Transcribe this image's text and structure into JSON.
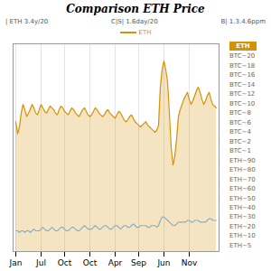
{
  "chart_data": {
    "type": "line",
    "title": "Comparison ETH Price",
    "categories": [
      "Jan",
      null,
      null,
      null,
      null,
      null,
      null,
      null,
      null,
      null,
      null,
      null,
      null,
      null,
      "Jul",
      null,
      null,
      null,
      null,
      null,
      null,
      null,
      null,
      null,
      null,
      null,
      null,
      "Oct",
      null,
      null,
      null,
      null,
      null,
      null,
      null,
      null,
      null,
      null,
      null,
      null,
      null,
      "Oct",
      null,
      null,
      null,
      null,
      null,
      null,
      null,
      null,
      null,
      null,
      null,
      null,
      null,
      "Apr",
      null,
      null,
      null,
      null,
      null,
      null,
      null,
      null,
      null,
      null,
      null,
      null,
      "Sep",
      null,
      null,
      null,
      null,
      null,
      null,
      null,
      null,
      null,
      null,
      null,
      null,
      null,
      "Jun",
      null,
      null,
      null,
      null,
      null,
      null,
      null,
      null,
      null,
      null,
      null,
      null,
      null,
      "Nov",
      null,
      null,
      null,
      null,
      null,
      null,
      null,
      null,
      null,
      null,
      null,
      null,
      null,
      null,
      null
    ],
    "series": [
      {
        "name": "ETH",
        "type": "area",
        "color": "#d4920a",
        "values": [
          75,
          68,
          72,
          80,
          85,
          82,
          78,
          80,
          82,
          85,
          83,
          80,
          79,
          82,
          85,
          83,
          81,
          80,
          82,
          84,
          83,
          82,
          80,
          79,
          82,
          84,
          83,
          81,
          80,
          79,
          81,
          83,
          82,
          80,
          79,
          78,
          80,
          82,
          83,
          81,
          79,
          78,
          79,
          81,
          83,
          82,
          80,
          79,
          78,
          79,
          81,
          82,
          80,
          79,
          78,
          77,
          79,
          81,
          80,
          78,
          76,
          75,
          76,
          78,
          79,
          77,
          75,
          74,
          73,
          72,
          73,
          74,
          75,
          73,
          72,
          71,
          70,
          69,
          70,
          73,
          95,
          105,
          110,
          105,
          98,
          80,
          60,
          50,
          55,
          65,
          78,
          82,
          85,
          88,
          90,
          92,
          88,
          85,
          87,
          90,
          93,
          95,
          92,
          88,
          85,
          87,
          90,
          92,
          88,
          85,
          84,
          83
        ]
      },
      {
        "type": "line",
        "color": "#8aafc0",
        "values": [
          12,
          12,
          11,
          12,
          12,
          11,
          12,
          12,
          11,
          12,
          13,
          12,
          12,
          12,
          13,
          14,
          13,
          12,
          12,
          13,
          14,
          13,
          12,
          12,
          13,
          14,
          14,
          13,
          12,
          12,
          13,
          14,
          14,
          13,
          12,
          12,
          13,
          14,
          15,
          14,
          13,
          13,
          13,
          14,
          15,
          14,
          13,
          13,
          14,
          15,
          15,
          14,
          13,
          13,
          14,
          15,
          15,
          14,
          13,
          14,
          15,
          15,
          14,
          14,
          15,
          16,
          15,
          14,
          14,
          15,
          15,
          15,
          15,
          14,
          14,
          15,
          15,
          15,
          14,
          15,
          18,
          20,
          20,
          19,
          18,
          17,
          16,
          15,
          15,
          16,
          17,
          17,
          17,
          17,
          17,
          18,
          18,
          17,
          17,
          18,
          18,
          18,
          17,
          17,
          17,
          17,
          18,
          19,
          19,
          18,
          18,
          18
        ]
      }
    ],
    "ylim": [
      0,
      120
    ],
    "grid": true,
    "tick_labels": "x",
    "legend": "top",
    "annotations": [
      "| ETH 3.4y/20",
      "C|S| 1.6day/20",
      "B| 1.3.4.6ppm",
      "ETH",
      "BTC~20",
      "BTC~18",
      "BTC~16",
      "BTC~14",
      "BTC~12",
      "BTC~10",
      "BTC~8",
      "BTC~6",
      "BTC~4",
      "BTC~2",
      "BTC~1",
      "ETH~90",
      "ETH~80",
      "ETH~70",
      "ETH~60",
      "ETH~50",
      "ETH~40",
      "ETH~30",
      "ETH~20",
      "ETH~10",
      "ETH~5"
    ]
  }
}
